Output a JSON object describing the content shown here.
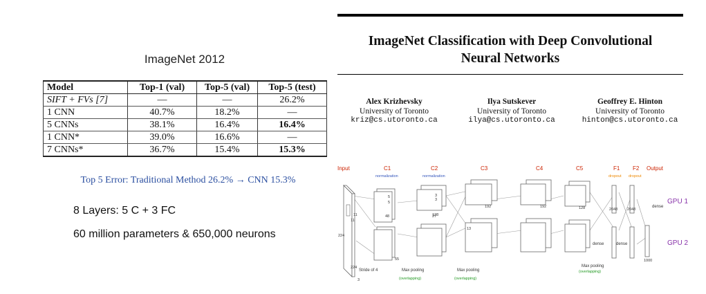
{
  "left": {
    "table_title": "ImageNet 2012",
    "table": {
      "headers": [
        "Model",
        "Top-1 (val)",
        "Top-5 (val)",
        "Top-5 (test)"
      ],
      "rows": [
        [
          "SIFT + FVs [7]",
          "—",
          "—",
          "26.2%"
        ],
        [
          "1 CNN",
          "40.7%",
          "18.2%",
          "—"
        ],
        [
          "5 CNNs",
          "38.1%",
          "16.4%",
          "16.4%"
        ],
        [
          "1 CNN*",
          "39.0%",
          "16.6%",
          "—"
        ],
        [
          "7 CNNs*",
          "36.7%",
          "15.4%",
          "15.3%"
        ]
      ]
    },
    "caption": "Top 5 Error: Traditional Method 26.2% → CNN 15.3%",
    "facts": [
      "8 Layers: 5 C + 3 FC",
      "60 million parameters & 650,000 neurons"
    ]
  },
  "paper": {
    "title_line1": "ImageNet Classification with Deep Convolutional",
    "title_line2": "Neural Networks",
    "authors": [
      {
        "name": "Alex Krizhevsky",
        "affiliation": "University of Toronto",
        "email": "kriz@cs.utoronto.ca"
      },
      {
        "name": "Ilya Sutskever",
        "affiliation": "University of Toronto",
        "email": "ilya@cs.utoronto.ca"
      },
      {
        "name": "Geoffrey E. Hinton",
        "affiliation": "University of Toronto",
        "email": "hinton@cs.utoronto.ca"
      }
    ]
  },
  "architecture": {
    "stage_labels": [
      "Input",
      "C1",
      "C2",
      "C3",
      "C4",
      "C5",
      "F1",
      "F2",
      "Output"
    ],
    "normalization_label": "normalization",
    "dropout_label": "dropout",
    "gpu_labels": [
      "GPU 1",
      "GPU 2"
    ],
    "dense_label": "dense",
    "stride_label": "Stride of 4",
    "max_pooling_label": "Max pooling",
    "overlapping_label": "(overlapping)",
    "dims": [
      "224",
      "224",
      "3",
      "11",
      "11",
      "55",
      "48",
      "5",
      "5",
      "27",
      "128",
      "3",
      "3",
      "13",
      "192",
      "192",
      "128",
      "2048",
      "2048",
      "1000"
    ],
    "colors": {
      "stage": "#cc2200",
      "sub": "#3355bb",
      "dropout": "#ee8800",
      "gpu": "#8833aa",
      "pool": "#229922"
    }
  }
}
